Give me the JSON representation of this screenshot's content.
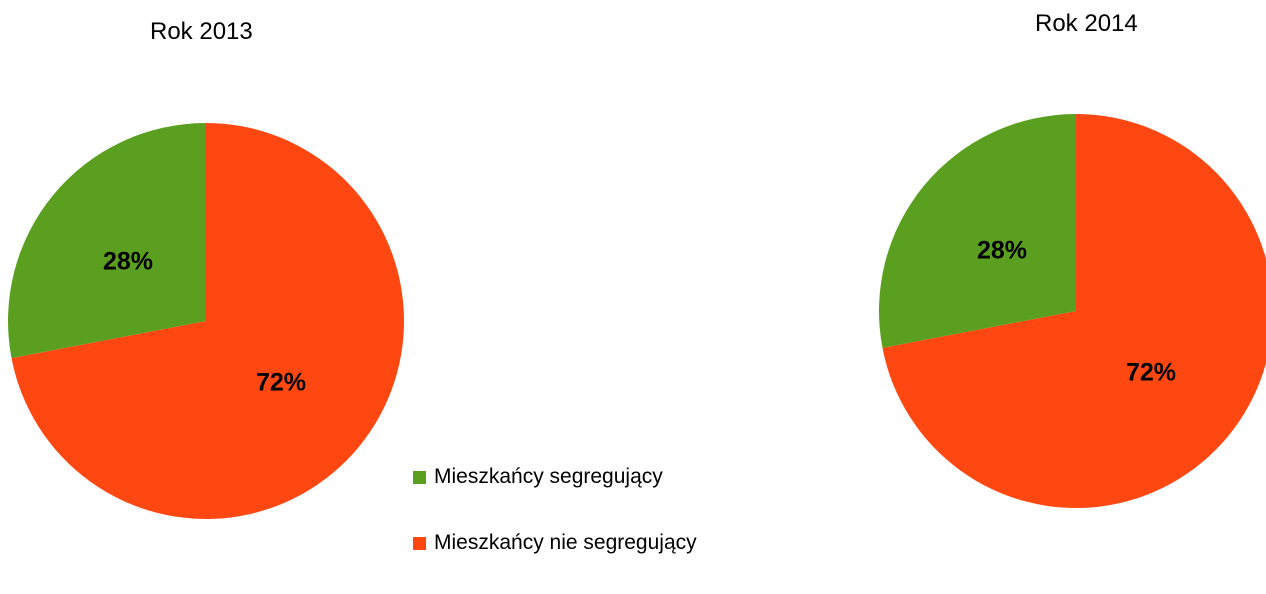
{
  "colors": {
    "segregujacy": "#5a9f1f",
    "nie_segregujacy": "#ff4712"
  },
  "chart_data": [
    {
      "type": "pie",
      "title": "Rok 2013",
      "categories": [
        "Mieszkańcy segregujący",
        "Mieszkańcy nie segregujący"
      ],
      "values": [
        28,
        72
      ],
      "labels": [
        "28%",
        "72%"
      ],
      "colors": [
        "#5a9f1f",
        "#ff4712"
      ],
      "legend": "bottom-center"
    },
    {
      "type": "pie",
      "title": "Rok 2014",
      "categories": [
        "Mieszkańcy segregujący",
        "Mieszkańcy nie segregujący"
      ],
      "values": [
        28,
        72
      ],
      "labels": [
        "28%",
        "72%"
      ],
      "colors": [
        "#5a9f1f",
        "#ff4712"
      ],
      "legend": "bottom-center"
    }
  ],
  "legend": {
    "items": [
      {
        "label": "Mieszkańcy segregujący",
        "color": "#5a9f1f"
      },
      {
        "label": "Mieszkańcy nie segregujący",
        "color": "#ff4712"
      }
    ]
  }
}
